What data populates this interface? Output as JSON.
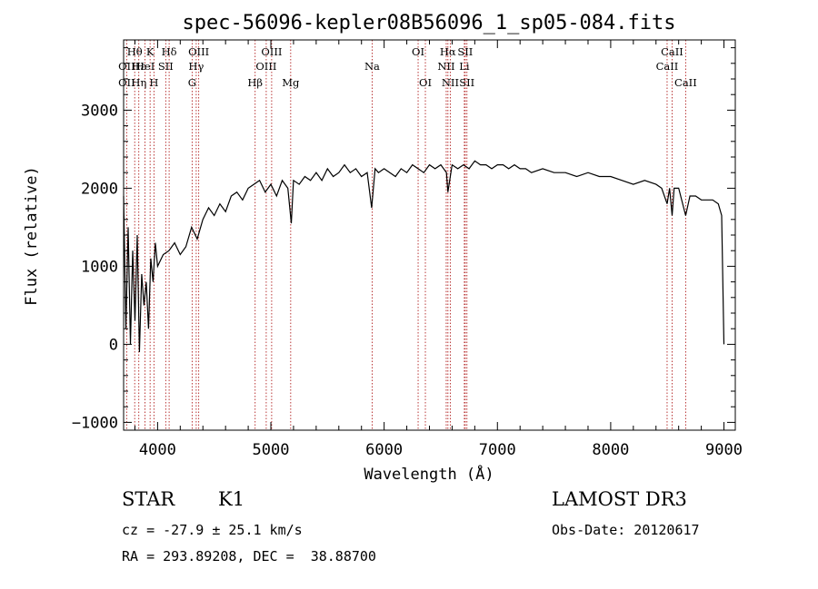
{
  "chart_data": {
    "type": "line",
    "title": "spec-56096-kepler08B56096_1_sp05-084.fits",
    "xlabel": "Wavelength (Å)",
    "ylabel": "Flux (relative)",
    "xlim": [
      3700,
      9100
    ],
    "ylim": [
      -1100,
      3900
    ],
    "xticks": [
      4000,
      5000,
      6000,
      7000,
      8000,
      9000
    ],
    "yticks": [
      -1000,
      0,
      1000,
      2000,
      3000
    ],
    "series": [
      {
        "name": "spectrum",
        "color": "#000000",
        "x": [
          3700,
          3720,
          3740,
          3760,
          3780,
          3800,
          3820,
          3840,
          3860,
          3880,
          3900,
          3920,
          3940,
          3960,
          3980,
          4000,
          4050,
          4100,
          4150,
          4200,
          4250,
          4300,
          4350,
          4400,
          4450,
          4500,
          4550,
          4600,
          4650,
          4700,
          4750,
          4800,
          4850,
          4900,
          4950,
          5000,
          5050,
          5100,
          5150,
          5180,
          5200,
          5250,
          5300,
          5350,
          5400,
          5450,
          5500,
          5550,
          5600,
          5650,
          5700,
          5750,
          5800,
          5850,
          5890,
          5920,
          5950,
          6000,
          6050,
          6100,
          6150,
          6200,
          6250,
          6300,
          6350,
          6400,
          6450,
          6500,
          6550,
          6563,
          6600,
          6650,
          6700,
          6750,
          6800,
          6850,
          6900,
          6950,
          7000,
          7050,
          7100,
          7150,
          7200,
          7250,
          7300,
          7400,
          7500,
          7600,
          7700,
          7800,
          7900,
          8000,
          8100,
          8200,
          8300,
          8400,
          8450,
          8498,
          8520,
          8542,
          8560,
          8600,
          8662,
          8700,
          8750,
          8800,
          8850,
          8900,
          8950,
          8980,
          9000
        ],
        "y": [
          1900,
          200,
          1500,
          0,
          1200,
          300,
          1400,
          -100,
          900,
          500,
          800,
          200,
          1100,
          800,
          1300,
          1000,
          1150,
          1200,
          1300,
          1150,
          1250,
          1500,
          1350,
          1600,
          1750,
          1650,
          1800,
          1700,
          1900,
          1950,
          1850,
          2000,
          2050,
          2100,
          1950,
          2050,
          1900,
          2100,
          2000,
          1550,
          2100,
          2050,
          2150,
          2100,
          2200,
          2100,
          2250,
          2150,
          2200,
          2300,
          2200,
          2250,
          2150,
          2200,
          1750,
          2250,
          2200,
          2250,
          2200,
          2150,
          2250,
          2200,
          2300,
          2250,
          2200,
          2300,
          2250,
          2300,
          2200,
          1950,
          2300,
          2250,
          2300,
          2250,
          2350,
          2300,
          2300,
          2250,
          2300,
          2300,
          2250,
          2300,
          2250,
          2250,
          2200,
          2250,
          2200,
          2200,
          2150,
          2200,
          2150,
          2150,
          2100,
          2050,
          2100,
          2050,
          2000,
          1800,
          2000,
          1650,
          2000,
          2000,
          1650,
          1900,
          1900,
          1850,
          1850,
          1850,
          1800,
          1650,
          0
        ]
      }
    ],
    "line_labels": [
      {
        "label": "Hθ",
        "x": 3798,
        "row": 1
      },
      {
        "label": "OII",
        "x": 3727,
        "row": 2
      },
      {
        "label": "OII",
        "x": 3727,
        "row": 3
      },
      {
        "label": "Hε",
        "x": 3834,
        "row": 2
      },
      {
        "label": "Hη",
        "x": 3835,
        "row": 3
      },
      {
        "label": "K",
        "x": 3934,
        "row": 1
      },
      {
        "label": "HeI",
        "x": 3889,
        "row": 2
      },
      {
        "label": "H",
        "x": 3968,
        "row": 3
      },
      {
        "label": "SII",
        "x": 4072,
        "row": 2
      },
      {
        "label": "Hδ",
        "x": 4102,
        "row": 1
      },
      {
        "label": "OIII",
        "x": 4363,
        "row": 1
      },
      {
        "label": "Hγ",
        "x": 4341,
        "row": 2
      },
      {
        "label": "G",
        "x": 4305,
        "row": 3
      },
      {
        "label": "Hβ",
        "x": 4861,
        "row": 3
      },
      {
        "label": "OIII",
        "x": 5007,
        "row": 1
      },
      {
        "label": "OIII",
        "x": 4959,
        "row": 2
      },
      {
        "label": "Mg",
        "x": 5175,
        "row": 3
      },
      {
        "label": "Na",
        "x": 5894,
        "row": 2
      },
      {
        "label": "OI",
        "x": 6300,
        "row": 1
      },
      {
        "label": "OI",
        "x": 6364,
        "row": 3
      },
      {
        "label": "Hα",
        "x": 6563,
        "row": 1
      },
      {
        "label": "SII",
        "x": 6716,
        "row": 1
      },
      {
        "label": "NII",
        "x": 6548,
        "row": 2
      },
      {
        "label": "Li",
        "x": 6708,
        "row": 2
      },
      {
        "label": "NII",
        "x": 6584,
        "row": 3
      },
      {
        "label": "SII",
        "x": 6731,
        "row": 3
      },
      {
        "label": "CaII",
        "x": 8542,
        "row": 1
      },
      {
        "label": "CaII",
        "x": 8498,
        "row": 2
      },
      {
        "label": "CaII",
        "x": 8662,
        "row": 3
      }
    ],
    "line_markers": [
      3727,
      3798,
      3834,
      3889,
      3934,
      3968,
      4072,
      4102,
      4305,
      4341,
      4363,
      4861,
      4959,
      5007,
      5175,
      5894,
      6300,
      6364,
      6548,
      6563,
      6584,
      6708,
      6716,
      6731,
      8498,
      8542,
      8662
    ],
    "marker_color": "#b22222"
  },
  "info": {
    "object_class": "STAR",
    "subclass": "K1",
    "survey": "LAMOST DR3",
    "redshift": "cz = -27.9 ± 25.1 km/s",
    "obs_date": "Obs-Date: 20120617",
    "coords": "RA = 293.89208, DEC =  38.88700"
  }
}
